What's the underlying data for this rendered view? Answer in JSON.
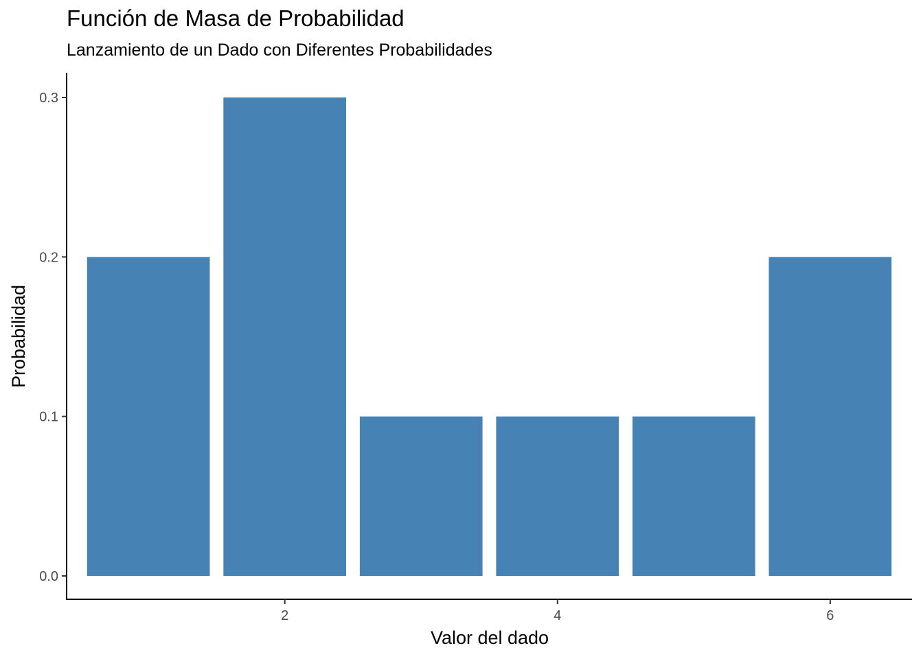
{
  "chart_data": {
    "type": "bar",
    "title": "Función de Masa de Probabilidad",
    "subtitle": "Lanzamiento de un Dado con Diferentes Probabilidades",
    "xlabel": "Valor del dado",
    "ylabel": "Probabilidad",
    "x": [
      1,
      2,
      3,
      4,
      5,
      6
    ],
    "values": [
      0.2,
      0.3,
      0.1,
      0.1,
      0.1,
      0.2
    ],
    "xlim": [
      0.4,
      6.6
    ],
    "ylim": [
      0,
      0.315
    ],
    "xticks": [
      2,
      4,
      6
    ],
    "yticks": [
      0.0,
      0.1,
      0.2,
      0.3
    ],
    "ytick_labels": [
      "0.0",
      "0.1",
      "0.2",
      "0.3"
    ],
    "xtick_labels": [
      "2",
      "4",
      "6"
    ],
    "bar_color": "#4682B4",
    "grid": false,
    "legend": "none"
  }
}
